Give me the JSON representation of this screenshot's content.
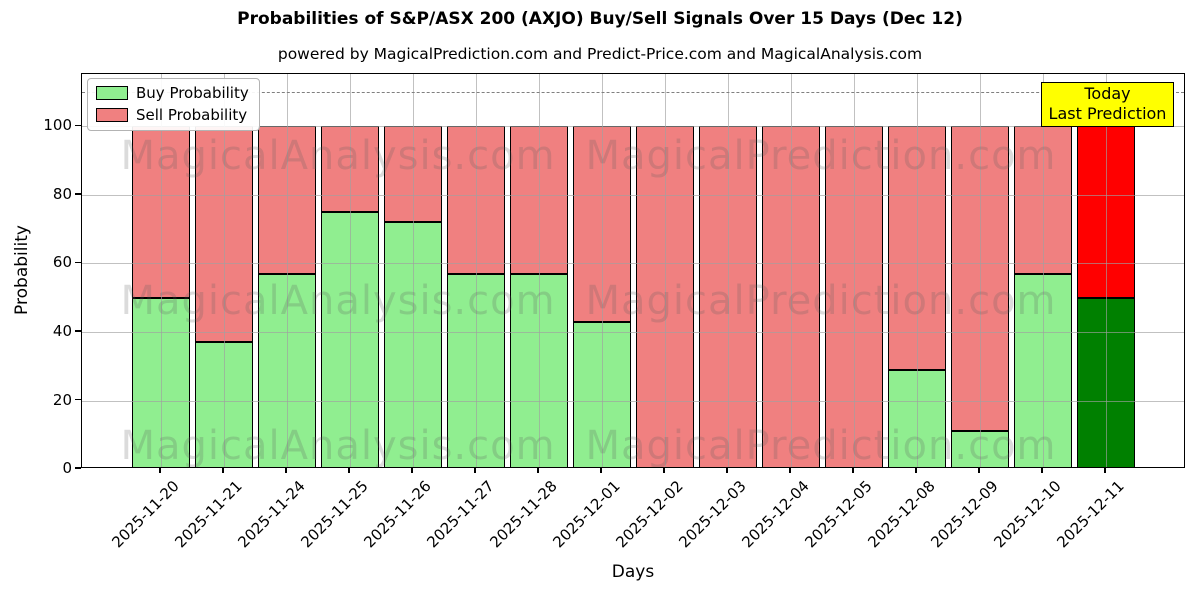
{
  "chart_data": {
    "type": "bar",
    "stacked": true,
    "title": "Probabilities of S&P/ASX 200 (AXJO) Buy/Sell Signals Over 15 Days (Dec 12)",
    "subtitle": "powered by MagicalPrediction.com and Predict-Price.com and MagicalAnalysis.com",
    "xlabel": "Days",
    "ylabel": "Probability",
    "categories": [
      "2025-11-20",
      "2025-11-21",
      "2025-11-24",
      "2025-11-25",
      "2025-11-26",
      "2025-11-27",
      "2025-11-28",
      "2025-12-01",
      "2025-12-02",
      "2025-12-03",
      "2025-12-04",
      "2025-12-05",
      "2025-12-08",
      "2025-12-09",
      "2025-12-10",
      "2025-12-11"
    ],
    "series": [
      {
        "name": "Buy Probability",
        "color": "#90ee90",
        "values": [
          50,
          37,
          57,
          75,
          72,
          57,
          57,
          43,
          0,
          0,
          0,
          0,
          29,
          11,
          57,
          50
        ]
      },
      {
        "name": "Sell Probability",
        "color": "#f08080",
        "values": [
          50,
          63,
          43,
          25,
          28,
          43,
          43,
          57,
          100,
          100,
          100,
          100,
          71,
          89,
          43,
          50
        ]
      }
    ],
    "last_bar_colors": {
      "buy": "#008000",
      "sell": "#ff0000"
    },
    "ylim": [
      0,
      115
    ],
    "yticks": [
      0,
      20,
      40,
      60,
      80,
      100
    ],
    "dashed_line_y": 110,
    "grid": true,
    "legend_position": "top-left",
    "annotation": {
      "line1": "Today",
      "line2": "Last Prediction",
      "bg": "#ffff00"
    },
    "watermarks": [
      "MagicalAnalysis.com",
      "MagicalPrediction.com"
    ]
  }
}
